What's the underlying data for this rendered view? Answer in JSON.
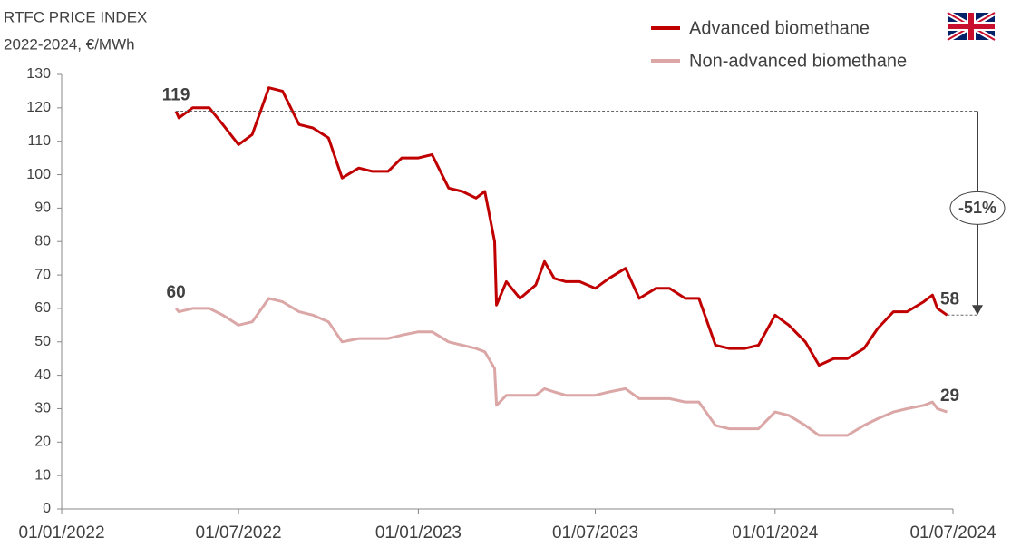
{
  "chart_data": {
    "type": "line",
    "title": "RTFC PRICE INDEX",
    "subtitle": "2022-2024, €/MWh",
    "x": [
      "2022-04-28",
      "2022-05-01",
      "2022-05-15",
      "2022-06-01",
      "2022-06-15",
      "2022-07-01",
      "2022-07-15",
      "2022-08-01",
      "2022-08-15",
      "2022-09-01",
      "2022-09-15",
      "2022-10-01",
      "2022-10-15",
      "2022-11-01",
      "2022-11-15",
      "2022-12-01",
      "2022-12-15",
      "2023-01-01",
      "2023-01-15",
      "2023-02-01",
      "2023-02-15",
      "2023-03-01",
      "2023-03-10",
      "2023-03-20",
      "2023-03-22",
      "2023-04-01",
      "2023-04-15",
      "2023-05-01",
      "2023-05-10",
      "2023-05-20",
      "2023-06-01",
      "2023-06-15",
      "2023-07-01",
      "2023-07-15",
      "2023-08-01",
      "2023-08-15",
      "2023-09-01",
      "2023-09-15",
      "2023-10-01",
      "2023-10-15",
      "2023-11-01",
      "2023-11-15",
      "2023-12-01",
      "2023-12-15",
      "2024-01-01",
      "2024-01-15",
      "2024-02-01",
      "2024-02-15",
      "2024-03-01",
      "2024-03-15",
      "2024-04-01",
      "2024-04-15",
      "2024-05-01",
      "2024-05-15",
      "2024-06-01",
      "2024-06-10",
      "2024-06-15",
      "2024-06-25"
    ],
    "series": [
      {
        "name": "Advanced biomethane",
        "color": "#c00000",
        "values": [
          119,
          117,
          120,
          120,
          115,
          109,
          112,
          126,
          125,
          115,
          114,
          111,
          99,
          102,
          101,
          101,
          105,
          105,
          106,
          96,
          95,
          93,
          95,
          80,
          61,
          68,
          63,
          67,
          74,
          69,
          68,
          68,
          66,
          69,
          72,
          63,
          66,
          66,
          63,
          63,
          49,
          48,
          48,
          49,
          58,
          55,
          50,
          43,
          45,
          45,
          48,
          54,
          59,
          59,
          62,
          64,
          60,
          58
        ]
      },
      {
        "name": "Non-advanced biomethane",
        "color": "#dba6a6",
        "values": [
          60,
          59,
          60,
          60,
          58,
          55,
          56,
          63,
          62,
          59,
          58,
          56,
          50,
          51,
          51,
          51,
          52,
          53,
          53,
          50,
          49,
          48,
          47,
          42,
          31,
          34,
          34,
          34,
          36,
          35,
          34,
          34,
          34,
          35,
          36,
          33,
          33,
          33,
          32,
          32,
          25,
          24,
          24,
          24,
          29,
          28,
          25,
          22,
          22,
          22,
          25,
          27,
          29,
          30,
          31,
          32,
          30,
          29
        ]
      }
    ],
    "annotation": "-51%",
    "xlim": [
      "2022-01-01",
      "2024-07-01"
    ],
    "xticks": [
      {
        "value": "2022-01-01",
        "label": "01/01/2022"
      },
      {
        "value": "2022-07-01",
        "label": "01/07/2022"
      },
      {
        "value": "2023-01-01",
        "label": "01/01/2023"
      },
      {
        "value": "2023-07-01",
        "label": "01/07/2023"
      },
      {
        "value": "2024-01-01",
        "label": "01/01/2024"
      },
      {
        "value": "2024-07-01",
        "label": "01/07/2024"
      }
    ],
    "ylim": [
      0,
      130
    ],
    "yticks": [
      0,
      10,
      20,
      30,
      40,
      50,
      60,
      70,
      80,
      90,
      100,
      110,
      120,
      130
    ],
    "grid": false,
    "legend": "top-right"
  }
}
